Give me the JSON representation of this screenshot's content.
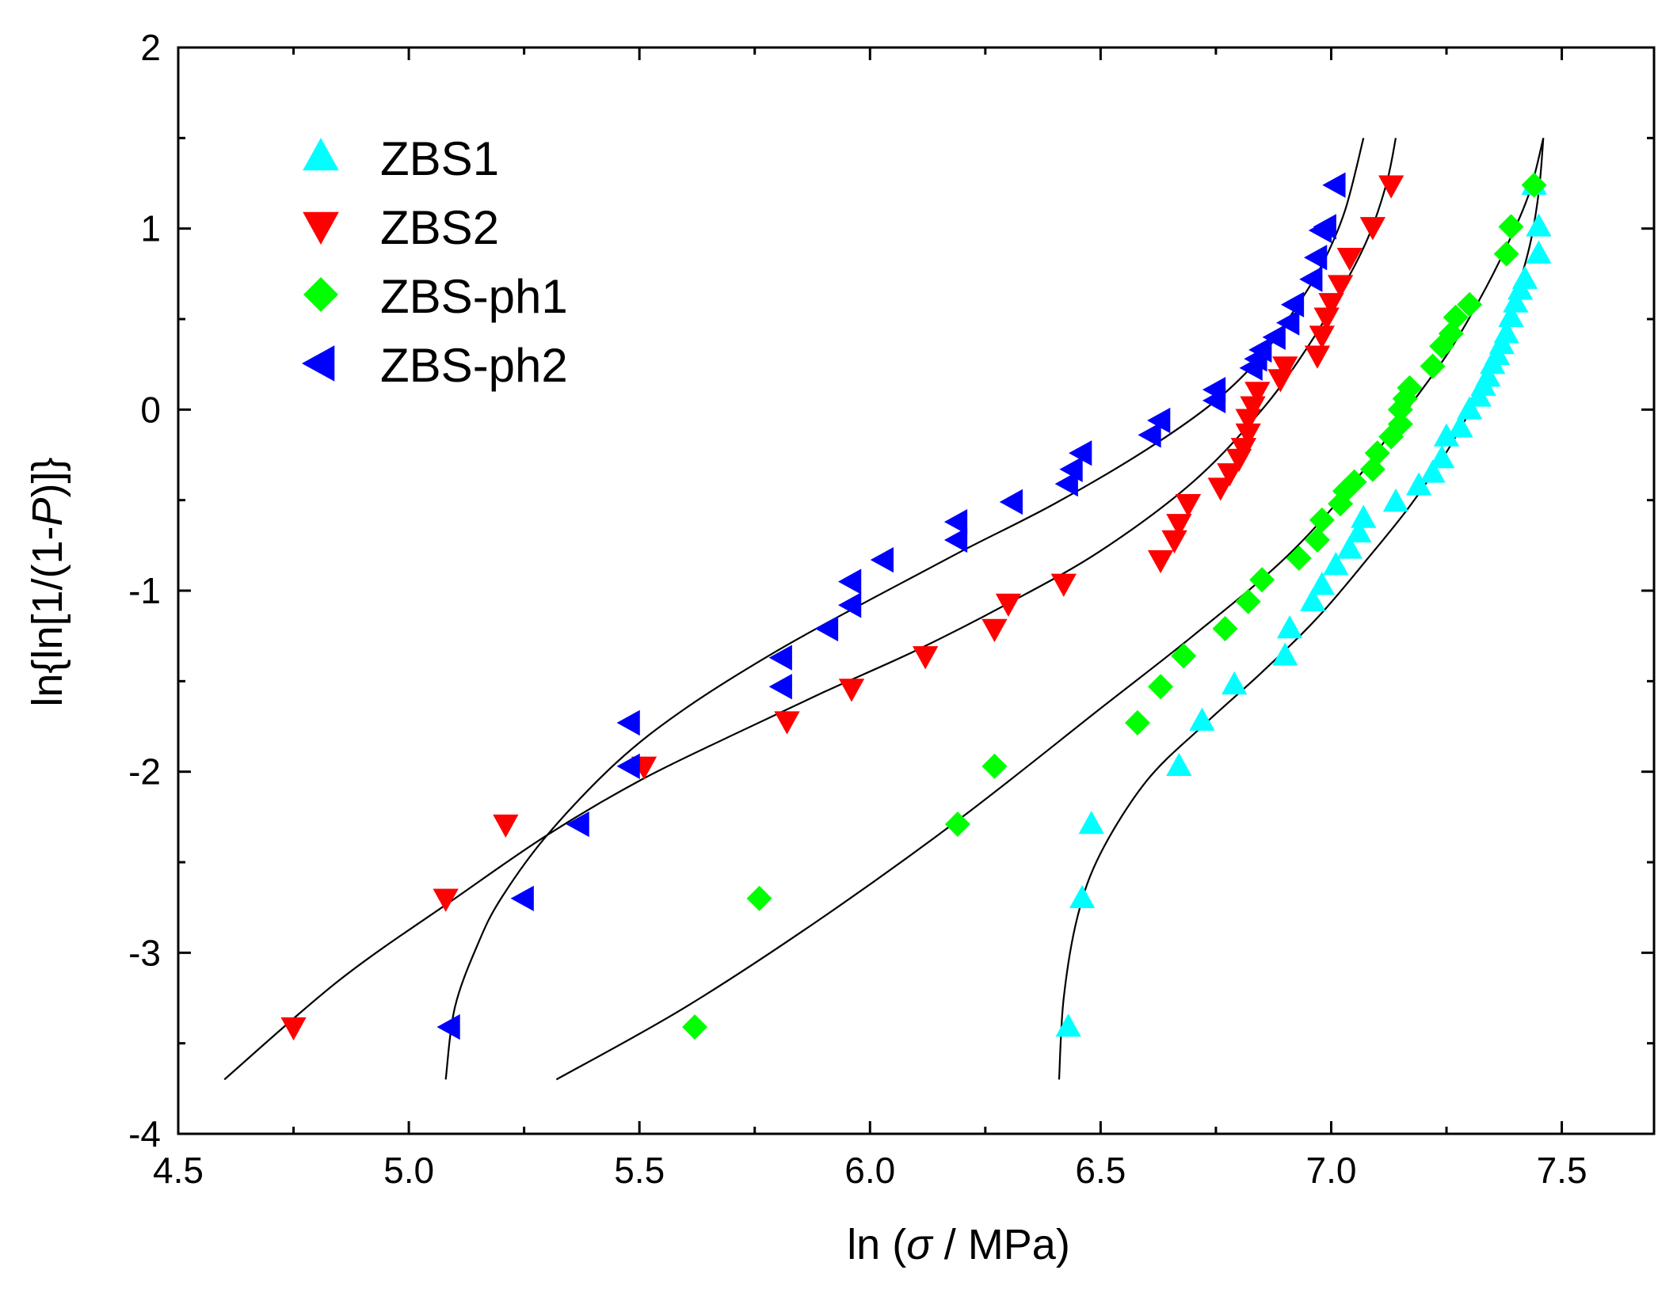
{
  "chart_data": {
    "type": "scatter",
    "title": "",
    "xlabel": {
      "prefix": "ln (",
      "symbol": "σ",
      "suffix": " / MPa)"
    },
    "ylabel": {
      "prefix": "ln{ln[1/(1-",
      "symbol": "P",
      "suffix": ")]}"
    },
    "xlim": [
      4.5,
      7.7
    ],
    "ylim": [
      -4,
      2
    ],
    "xticks": [
      "4.5",
      "5.0",
      "5.5",
      "6.0",
      "6.5",
      "7.0",
      "7.5"
    ],
    "yticks": [
      "-4",
      "-3",
      "-2",
      "-1",
      "0",
      "1",
      "2"
    ],
    "legend_position": "top-left",
    "grid": false,
    "series": [
      {
        "name": "ZBS1",
        "marker": "triangle-up",
        "color": "#00FFFF",
        "x": [
          6.43,
          6.46,
          6.48,
          6.67,
          6.72,
          6.79,
          6.9,
          6.91,
          6.96,
          6.98,
          7.01,
          7.04,
          7.06,
          7.07,
          7.14,
          7.19,
          7.22,
          7.24,
          7.25,
          7.28,
          7.3,
          7.32,
          7.33,
          7.34,
          7.35,
          7.36,
          7.37,
          7.38,
          7.39,
          7.4,
          7.41,
          7.42,
          7.45,
          7.45,
          7.44
        ],
        "y": [
          -3.41,
          -2.7,
          -2.29,
          -1.97,
          -1.72,
          -1.52,
          -1.36,
          -1.21,
          -1.06,
          -0.97,
          -0.86,
          -0.77,
          -0.68,
          -0.6,
          -0.51,
          -0.42,
          -0.35,
          -0.27,
          -0.15,
          -0.1,
          0.0,
          0.07,
          0.13,
          0.18,
          0.25,
          0.3,
          0.36,
          0.42,
          0.51,
          0.59,
          0.66,
          0.72,
          0.86,
          1.01,
          1.24
        ]
      },
      {
        "name": "ZBS2",
        "marker": "triangle-down",
        "color": "#FF0000",
        "x": [
          4.75,
          5.08,
          5.21,
          5.51,
          5.82,
          5.96,
          6.12,
          6.27,
          6.3,
          6.42,
          6.63,
          6.66,
          6.67,
          6.69,
          6.76,
          6.78,
          6.8,
          6.81,
          6.82,
          6.82,
          6.83,
          6.84,
          6.89,
          6.9,
          6.97,
          6.98,
          6.99,
          7.0,
          7.02,
          7.04,
          7.09,
          7.13
        ],
        "y": [
          -3.41,
          -2.7,
          -2.29,
          -1.97,
          -1.72,
          -1.54,
          -1.36,
          -1.21,
          -1.07,
          -0.96,
          -0.83,
          -0.72,
          -0.63,
          -0.52,
          -0.43,
          -0.35,
          -0.27,
          -0.21,
          -0.13,
          -0.05,
          0.02,
          0.1,
          0.17,
          0.24,
          0.3,
          0.41,
          0.51,
          0.59,
          0.69,
          0.84,
          1.01,
          1.24
        ]
      },
      {
        "name": "ZBS-ph1",
        "marker": "diamond",
        "color": "#00FF00",
        "x": [
          5.62,
          5.76,
          6.19,
          6.27,
          6.58,
          6.63,
          6.68,
          6.77,
          6.82,
          6.85,
          6.93,
          6.97,
          6.98,
          7.02,
          7.03,
          7.05,
          7.09,
          7.1,
          7.13,
          7.15,
          7.15,
          7.16,
          7.17,
          7.22,
          7.24,
          7.26,
          7.27,
          7.3,
          7.38,
          7.39,
          7.44
        ],
        "y": [
          -3.41,
          -2.7,
          -2.29,
          -1.97,
          -1.73,
          -1.53,
          -1.36,
          -1.21,
          -1.06,
          -0.94,
          -0.82,
          -0.72,
          -0.61,
          -0.52,
          -0.45,
          -0.4,
          -0.33,
          -0.24,
          -0.15,
          -0.08,
          0.0,
          0.06,
          0.12,
          0.24,
          0.35,
          0.42,
          0.51,
          0.58,
          0.86,
          1.01,
          1.24
        ]
      },
      {
        "name": "ZBS-ph2",
        "marker": "triangle-left",
        "color": "#0000FF",
        "x": [
          5.09,
          5.25,
          5.37,
          5.48,
          5.48,
          5.81,
          5.81,
          5.91,
          5.96,
          5.96,
          6.03,
          6.19,
          6.19,
          6.31,
          6.43,
          6.44,
          6.46,
          6.61,
          6.63,
          6.75,
          6.75,
          6.83,
          6.84,
          6.85,
          6.88,
          6.91,
          6.92,
          6.96,
          6.97,
          6.98,
          6.99,
          7.01
        ],
        "y": [
          -3.41,
          -2.7,
          -2.29,
          -1.97,
          -1.73,
          -1.53,
          -1.37,
          -1.21,
          -1.08,
          -0.95,
          -0.83,
          -0.72,
          -0.62,
          -0.51,
          -0.41,
          -0.33,
          -0.24,
          -0.14,
          -0.06,
          0.05,
          0.11,
          0.23,
          0.28,
          0.33,
          0.4,
          0.48,
          0.58,
          0.72,
          0.84,
          0.99,
          1.01,
          1.24
        ]
      }
    ],
    "fit_curves": [
      {
        "series": "ZBS2",
        "x": [
          4.6,
          4.85,
          5.1,
          5.3,
          5.5,
          5.7,
          5.9,
          6.1,
          6.3,
          6.5,
          6.7,
          6.85,
          6.95,
          7.02,
          7.08,
          7.12,
          7.14
        ],
        "y": [
          -3.7,
          -3.15,
          -2.7,
          -2.35,
          -2.05,
          -1.8,
          -1.56,
          -1.33,
          -1.07,
          -0.78,
          -0.4,
          0.0,
          0.35,
          0.65,
          0.95,
          1.25,
          1.5
        ]
      },
      {
        "series": "ZBS-ph2",
        "x": [
          5.08,
          5.1,
          5.15,
          5.2,
          5.3,
          5.45,
          5.6,
          5.8,
          6.0,
          6.2,
          6.4,
          6.6,
          6.75,
          6.85,
          6.92,
          6.98,
          7.03,
          7.07
        ],
        "y": [
          -3.7,
          -3.3,
          -2.95,
          -2.7,
          -2.35,
          -1.95,
          -1.65,
          -1.33,
          -1.05,
          -0.78,
          -0.52,
          -0.22,
          0.05,
          0.3,
          0.55,
          0.8,
          1.1,
          1.5
        ]
      },
      {
        "series": "ZBS-ph1",
        "x": [
          5.32,
          5.6,
          5.9,
          6.2,
          6.5,
          6.7,
          6.9,
          7.05,
          7.15,
          7.25,
          7.32,
          7.38,
          7.43,
          7.46
        ],
        "y": [
          -3.7,
          -3.3,
          -2.8,
          -2.25,
          -1.65,
          -1.25,
          -0.82,
          -0.4,
          -0.05,
          0.3,
          0.6,
          0.9,
          1.2,
          1.5
        ]
      },
      {
        "series": "ZBS1",
        "x": [
          6.41,
          6.42,
          6.45,
          6.5,
          6.6,
          6.72,
          6.85,
          6.97,
          7.08,
          7.18,
          7.27,
          7.34,
          7.39,
          7.43,
          7.45,
          7.46
        ],
        "y": [
          -3.7,
          -3.25,
          -2.8,
          -2.45,
          -2.05,
          -1.75,
          -1.45,
          -1.15,
          -0.82,
          -0.5,
          -0.15,
          0.2,
          0.55,
          0.9,
          1.2,
          1.5
        ]
      }
    ]
  }
}
